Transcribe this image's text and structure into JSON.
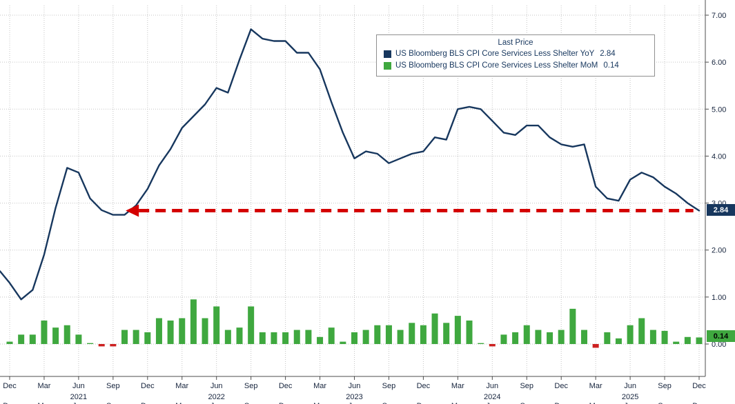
{
  "legend": {
    "title": "Last Price",
    "series": [
      {
        "label": "US Bloomberg BLS CPI Core Services Less Shelter YoY",
        "value": "2.84"
      },
      {
        "label": "US Bloomberg BLS CPI Core Services Less Shelter MoM",
        "value": "0.14"
      }
    ]
  },
  "badges": {
    "yoy": "2.84",
    "mom": "0.14"
  },
  "colors": {
    "line": "#17375e",
    "bar_positive": "#3fa83f",
    "bar_negative": "#cc2020",
    "arrow": "#d40000",
    "grid": "#c3c3c3",
    "axis": "#4d4d4d",
    "tick_text": "#15233c",
    "badge_yoy_bg": "#17375e",
    "badge_mom_bg": "#3fa83f"
  },
  "chart_data": {
    "type": "line+bar",
    "frequency": "monthly",
    "x_range_shown": "Dec 2020 - Dec 2025",
    "x_tick_labels": [
      "Dec",
      "Mar",
      "Jun",
      "Sep",
      "Dec",
      "Mar",
      "Jun",
      "Sep",
      "Dec",
      "Mar",
      "Jun",
      "Sep",
      "Dec",
      "Mar",
      "Jun",
      "Sep",
      "Dec",
      "Mar",
      "Jun",
      "Sep",
      "Dec"
    ],
    "x_tick_step_months": 3,
    "year_labels": [
      {
        "label": "2021",
        "month_index": 6
      },
      {
        "label": "2022",
        "month_index": 18
      },
      {
        "label": "2023",
        "month_index": 30
      },
      {
        "label": "2024",
        "month_index": 42
      },
      {
        "label": "2025",
        "month_index": 54
      }
    ],
    "y_ticks": [
      "0.00",
      "1.00",
      "2.00",
      "3.00",
      "4.00",
      "5.00",
      "6.00",
      "7.00"
    ],
    "ylim": [
      -0.7,
      7.1
    ],
    "grid": true,
    "legend_position": "top-center",
    "lead_in_value": 1.55,
    "series": [
      {
        "name": "US Bloomberg BLS CPI Core Services Less Shelter YoY",
        "type": "line",
        "color": "#17375e",
        "last_price": 2.84,
        "values": [
          1.3,
          0.95,
          1.15,
          1.9,
          2.9,
          3.75,
          3.65,
          3.1,
          2.85,
          2.75,
          2.75,
          2.95,
          3.3,
          3.8,
          4.15,
          4.6,
          4.85,
          5.1,
          5.45,
          5.35,
          6.05,
          6.7,
          6.5,
          6.45,
          6.45,
          6.2,
          6.2,
          5.85,
          5.15,
          4.5,
          3.95,
          4.1,
          4.05,
          3.85,
          3.95,
          4.05,
          4.1,
          4.4,
          4.35,
          5.0,
          5.05,
          5.0,
          4.75,
          4.5,
          4.45,
          4.65,
          4.65,
          4.4,
          4.25,
          4.2,
          4.25,
          3.35,
          3.1,
          3.05,
          3.5,
          3.65,
          3.55,
          3.35,
          3.2,
          3.0,
          2.84
        ]
      },
      {
        "name": "US Bloomberg BLS CPI Core Services Less Shelter MoM",
        "type": "bar",
        "color": "#3fa83f",
        "negative_color": "#cc2020",
        "last_price": 0.14,
        "values": [
          0.05,
          0.2,
          0.2,
          0.5,
          0.35,
          0.4,
          0.2,
          0.02,
          -0.05,
          -0.05,
          0.3,
          0.3,
          0.25,
          0.55,
          0.5,
          0.55,
          0.95,
          0.55,
          0.8,
          0.3,
          0.35,
          0.8,
          0.25,
          0.25,
          0.25,
          0.3,
          0.3,
          0.15,
          0.35,
          0.05,
          0.25,
          0.3,
          0.4,
          0.4,
          0.3,
          0.45,
          0.4,
          0.65,
          0.45,
          0.6,
          0.5,
          0.02,
          -0.05,
          0.2,
          0.25,
          0.4,
          0.3,
          0.25,
          0.3,
          0.75,
          0.3,
          -0.08,
          0.25,
          0.12,
          0.4,
          0.55,
          0.3,
          0.28,
          0.05,
          0.15,
          0.14
        ]
      }
    ],
    "annotation": {
      "type": "dashed-arrow-left",
      "color": "#d40000",
      "y_value": 2.84,
      "from_month_index": 59.5,
      "to_month_index": 10.1
    }
  }
}
